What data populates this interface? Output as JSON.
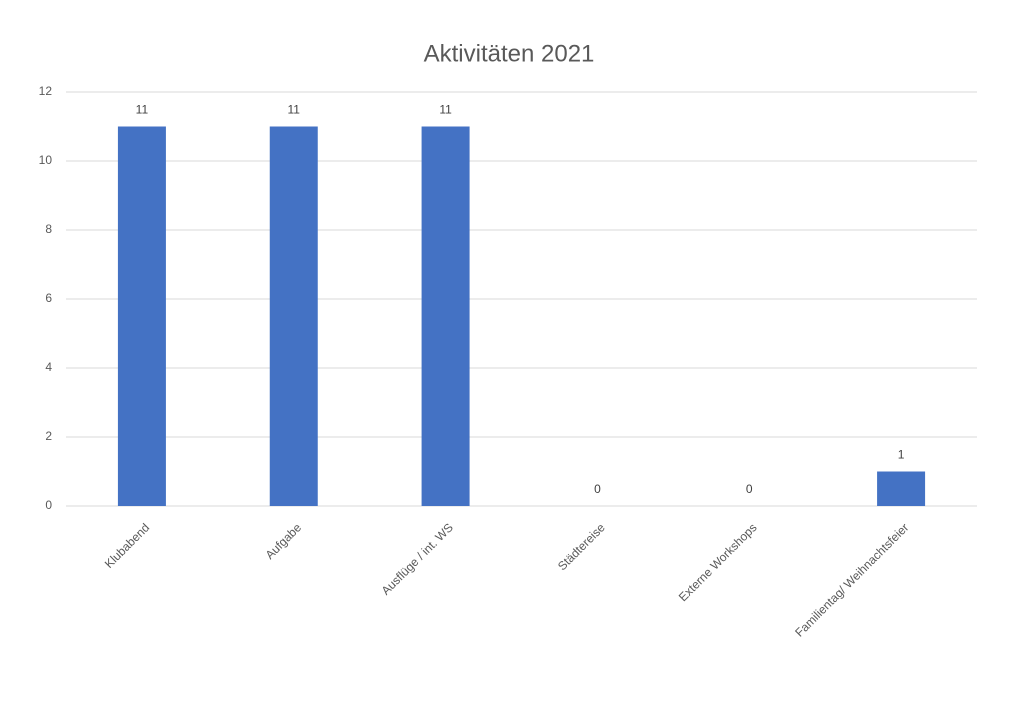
{
  "chart_data": {
    "type": "bar",
    "title": "Aktivitäten 2021",
    "categories": [
      "Klubabend",
      "Aufgabe",
      "Ausflüge / int. WS",
      "Städtereise",
      "Externe Workshops",
      "Familientag/ Weihnachtsfeier"
    ],
    "values": [
      11,
      11,
      11,
      0,
      0,
      1
    ],
    "color": "#4472c4",
    "ylim": [
      0,
      12
    ],
    "yticks": [
      0,
      2,
      4,
      6,
      8,
      10,
      12
    ],
    "grid": true
  }
}
